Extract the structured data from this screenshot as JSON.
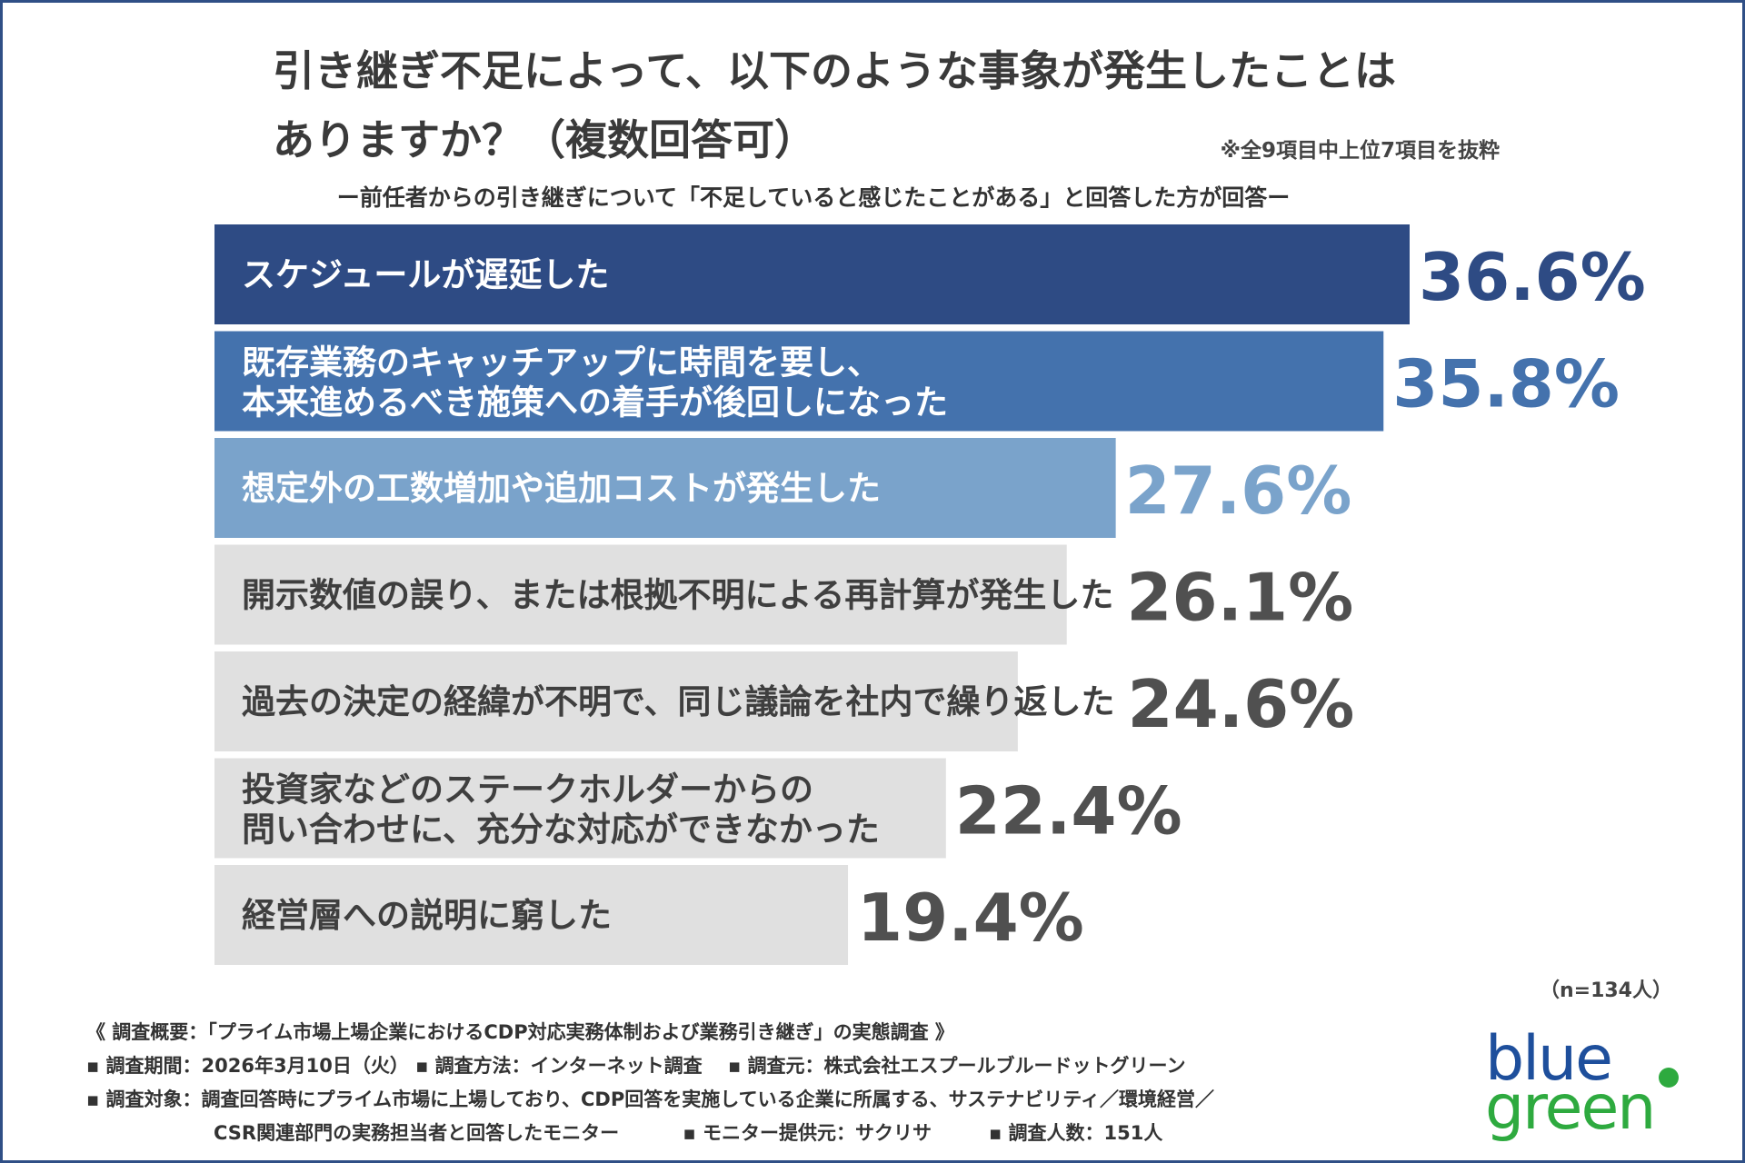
{
  "title_line1": "引き継ぎ不足によって、以下のような事象が発生したことは",
  "title_line2": "ありますか？（複数回答可）",
  "note": "※全9項目中上位7項目を抜粋",
  "subtitle": "ー前任者からの引き継ぎについて「不足していると感じたことがある」と回答した方が回答ー",
  "sample": "（n=134人）",
  "chart_data": {
    "type": "bar",
    "orientation": "horizontal",
    "categories": [
      [
        "スケジュールが遅延した"
      ],
      [
        "既存業務のキャッチアップに時間を要し、",
        "本来進めるべき施策への着手が後回しになった"
      ],
      [
        "想定外の工数増加や追加コストが発生した"
      ],
      [
        "開示数値の誤り、または根拠不明による再計算が発生した"
      ],
      [
        "過去の決定の経緯が不明で、同じ議論を社内で繰り返した"
      ],
      [
        "投資家などのステークホルダーからの",
        "問い合わせに、充分な対応ができなかった"
      ],
      [
        "経営層への説明に窮した"
      ]
    ],
    "values": [
      36.6,
      35.8,
      27.6,
      26.1,
      24.6,
      22.4,
      19.4
    ],
    "value_labels": [
      "36.6%",
      "35.8%",
      "27.6%",
      "26.1%",
      "24.6%",
      "22.4%",
      "19.4%"
    ],
    "unit": "%",
    "xlim": [
      0,
      36.6
    ],
    "bar_colors": [
      "#2e4b84",
      "#4472ad",
      "#7aa3cb",
      "#e0e0e0",
      "#e0e0e0",
      "#e0e0e0",
      "#e0e0e0"
    ],
    "label_colors": [
      "#ffffff",
      "#ffffff",
      "#ffffff",
      "#3f3f3f",
      "#3f3f3f",
      "#3f3f3f",
      "#3f3f3f"
    ],
    "value_colors": [
      "#2e4b84",
      "#4472ad",
      "#7aa3cb",
      "#505050",
      "#505050",
      "#505050",
      "#505050"
    ],
    "grid": false,
    "legend": "none"
  },
  "footer": {
    "line1": "《 調査概要：「プライム市場上場企業におけるCDP対応実務体制および業務引き継ぎ」の実態調査 》",
    "line2": "▪ 調査期間：2026年3月10日（火） ▪ 調査方法：インターネット調査　 ▪ 調査元：株式会社エスプールブルードットグリーン",
    "line3": "▪ 調査対象：調査回答時にプライム市場に上場しており、CDP回答を実施している企業に所属する、サステナビリティ／環境経営／",
    "line4": "CSR関連部門の実務担当者と回答したモニター　　　 ▪ モニター提供元：サクリサ　　　▪ 調査人数：151人"
  },
  "logo": {
    "word1": "blue",
    "word2": "green",
    "blue_color": "#1e4f9c",
    "green_color": "#2eaa3f"
  }
}
